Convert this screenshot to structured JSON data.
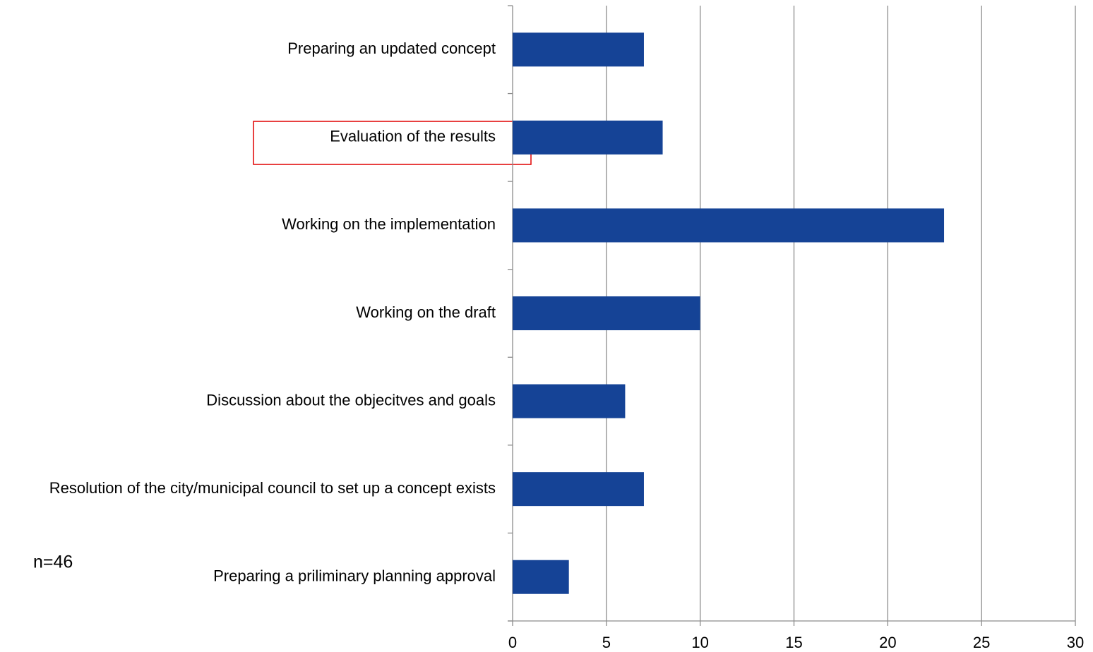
{
  "chart_data": {
    "type": "bar",
    "orientation": "horizontal",
    "categories": [
      "Preparing an updated concept",
      "Evaluation of the results",
      "Working on the implementation",
      "Working on the draft",
      "Discussion about the objecitves and goals",
      "Resolution of the city/municipal council to set up a concept exists",
      "Preparing a priliminary planning approval"
    ],
    "values": [
      7,
      8,
      23,
      10,
      6,
      7,
      3
    ],
    "color": "#154396",
    "xlim": [
      0,
      30
    ],
    "xticks": [
      0,
      5,
      10,
      15,
      20,
      25,
      30
    ],
    "grid": true,
    "annotation": "n=46"
  }
}
